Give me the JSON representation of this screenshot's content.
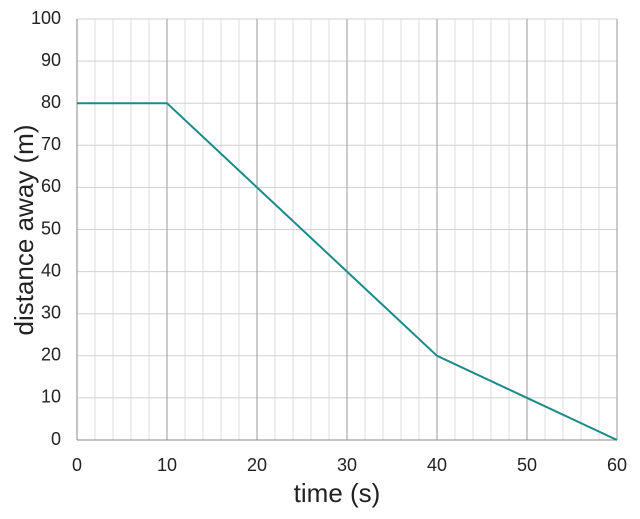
{
  "chart_data": {
    "type": "line",
    "x_label": "time (s)",
    "y_label": "distance away (m)",
    "x": [
      0,
      10,
      40,
      60
    ],
    "series": [
      {
        "color": "#1a8a8a",
        "values": [
          80,
          80,
          20,
          0
        ]
      }
    ],
    "xlim": [
      0,
      60
    ],
    "xticks": [
      0,
      10,
      20,
      30,
      40,
      50,
      60
    ],
    "ylim": [
      0,
      100
    ],
    "yticks": [
      0,
      10,
      20,
      30,
      40,
      50,
      60,
      70,
      80,
      90,
      100
    ],
    "grid": true
  }
}
